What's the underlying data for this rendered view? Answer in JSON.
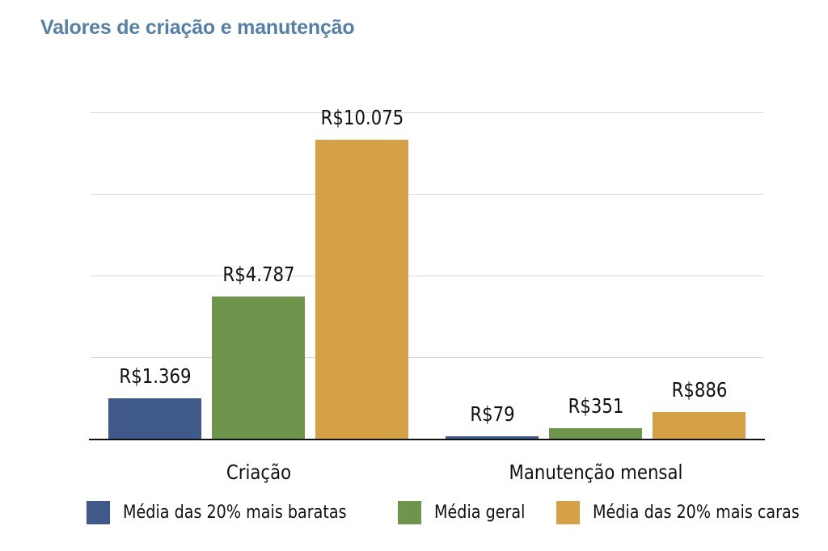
{
  "title": "Valores de criação e manutenção",
  "chart_data": {
    "type": "bar",
    "title": "Valores de criação e manutenção",
    "xlabel": "",
    "ylabel": "",
    "categories": [
      "Criação",
      "Manutenção mensal"
    ],
    "series": [
      {
        "name": "Média das 20% mais baratas",
        "color": "#3f5a8a",
        "values": [
          1369,
          79
        ],
        "labels": [
          "R$1.369",
          "R$79"
        ]
      },
      {
        "name": "Média geral",
        "color": "#6f954d",
        "values": [
          4787,
          351
        ],
        "labels": [
          "R$4.787",
          "R$351"
        ]
      },
      {
        "name": "Média das 20% mais caras",
        "color": "#d6a047",
        "values": [
          10075,
          886
        ],
        "labels": [
          "R$10.075",
          "R$886"
        ]
      }
    ],
    "ylim": [
      0,
      11000
    ],
    "gridlines": [
      2750,
      5500,
      8250,
      11000
    ],
    "grid": true,
    "y_tick_labels_visible": false,
    "legend_position": "bottom"
  },
  "legend": [
    {
      "label": "Média das 20% mais baratas",
      "color": "#3f5a8a"
    },
    {
      "label": "Média geral",
      "color": "#6f954d"
    },
    {
      "label": "Média das 20% mais caras",
      "color": "#d6a047"
    }
  ]
}
